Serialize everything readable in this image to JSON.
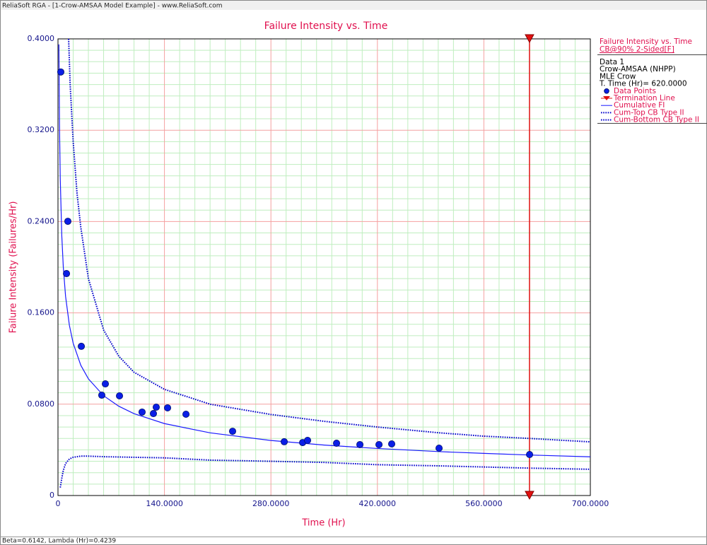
{
  "window_title": "ReliaSoft RGA - [1-Crow-AMSAA Model Example] - www.ReliaSoft.com",
  "status": "Beta=0.6142, Lambda (Hr)=0.4239",
  "chart_data": {
    "type": "scatter",
    "title": "Failure Intensity vs. Time",
    "x_label": "Time (Hr)",
    "y_label": "Failure Intensity (Failures/Hr)",
    "legend_title": "Failure Intensity vs. Time",
    "legend_subtitle": "CB@90% 2-Sided[F]",
    "legend_info": [
      "Data 1",
      "Crow-AMSAA (NHPP)",
      "MLE Crow",
      "T. Time (Hr)= 620.0000"
    ],
    "xlim": [
      0,
      700
    ],
    "ylim": [
      0,
      0.4
    ],
    "xticks": [
      0,
      {
        "value": 140,
        "label": "140.0000"
      },
      {
        "value": 280,
        "label": "280.0000"
      },
      {
        "value": 420,
        "label": "420.0000"
      },
      {
        "value": 560,
        "label": "560.0000"
      },
      {
        "value": 700,
        "label": "700.0000"
      }
    ],
    "yticks": [
      0,
      {
        "value": 0.08,
        "label": "0.0800"
      },
      {
        "value": 0.16,
        "label": "0.1600"
      },
      {
        "value": 0.24,
        "label": "0.2400"
      },
      {
        "value": 0.32,
        "label": "0.3200"
      },
      {
        "value": 0.4,
        "label": "0.4000"
      }
    ],
    "grid": true,
    "series": [
      {
        "name": "Data Points",
        "kind": "points",
        "color": "#0a1ee6",
        "x": [
          3.7,
          11.2,
          13.0,
          30.7,
          57.6,
          62.3,
          80.9,
          110.6,
          125.5,
          129.2,
          144.1,
          168.3,
          229.6,
          297.5,
          321.7,
          328.2,
          366.3,
          397.0,
          422.1,
          438.8,
          501.1,
          620.1
        ],
        "values": [
          0.371,
          0.1944,
          0.2402,
          0.1307,
          0.0879,
          0.0978,
          0.0873,
          0.0731,
          0.0718,
          0.0774,
          0.0768,
          0.0712,
          0.0563,
          0.0471,
          0.0464,
          0.0483,
          0.0458,
          0.0446,
          0.0446,
          0.0452,
          0.0415,
          0.0359
        ]
      },
      {
        "name": "Termination Line",
        "kind": "vline",
        "color": "#e01010",
        "x": [
          620
        ]
      },
      {
        "name": "Cumulative FI",
        "kind": "line",
        "color": "#1a1aff",
        "x": [
          1.2,
          2,
          3,
          5,
          7,
          10,
          15,
          20,
          30,
          40,
          60,
          80,
          100,
          140,
          200,
          280,
          350,
          420,
          500,
          560,
          620,
          700
        ],
        "values": [
          0.3951,
          0.3245,
          0.2775,
          0.2278,
          0.2001,
          0.1744,
          0.1491,
          0.1334,
          0.1141,
          0.1022,
          0.0874,
          0.0782,
          0.0717,
          0.063,
          0.0549,
          0.0482,
          0.0442,
          0.0412,
          0.0385,
          0.0369,
          0.0355,
          0.0339
        ]
      },
      {
        "name": "Cum-Top CB Type II",
        "kind": "dotted",
        "color": "#0000cc",
        "x": [
          14,
          16,
          20,
          25,
          30,
          40,
          60,
          80,
          100,
          140,
          200,
          280,
          350,
          420,
          500,
          560,
          620,
          700
        ],
        "values": [
          0.4,
          0.36,
          0.31,
          0.265,
          0.235,
          0.19,
          0.145,
          0.122,
          0.108,
          0.093,
          0.08,
          0.071,
          0.065,
          0.06,
          0.055,
          0.052,
          0.05,
          0.047
        ]
      },
      {
        "name": "Cum-Bottom CB Type II",
        "kind": "dotted",
        "color": "#0000cc",
        "x": [
          3,
          5,
          7,
          10,
          15,
          20,
          30,
          40,
          60,
          100,
          140,
          200,
          280,
          350,
          420,
          500,
          560,
          620,
          700
        ],
        "values": [
          0.007,
          0.015,
          0.022,
          0.028,
          0.032,
          0.0335,
          0.0345,
          0.0345,
          0.034,
          0.0335,
          0.033,
          0.031,
          0.03,
          0.029,
          0.027,
          0.026,
          0.025,
          0.024,
          0.023
        ]
      }
    ]
  }
}
